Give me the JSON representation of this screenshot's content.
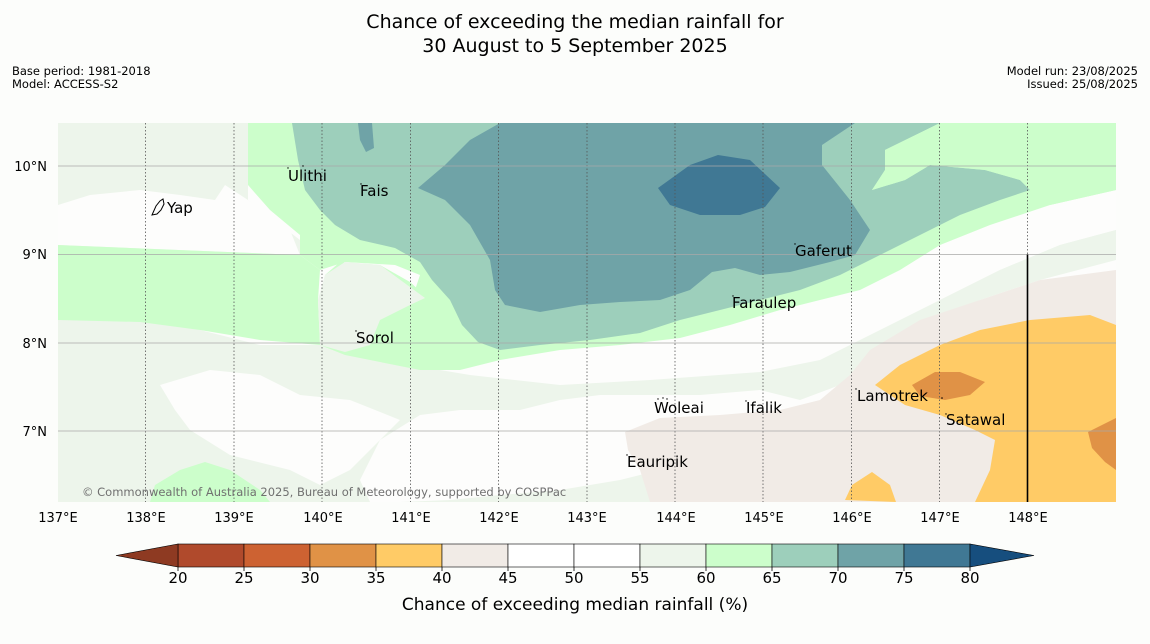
{
  "header": {
    "title_line1": "Chance of exceeding the median rainfall for",
    "title_line2": "30 August to 5 September 2025",
    "base_period": "Base period: 1981-2018",
    "model": "Model: ACCESS-S2",
    "model_run": "Model run: 23/08/2025",
    "issued": "Issued: 25/08/2025"
  },
  "map": {
    "lon_labels": [
      "137°E",
      "138°E",
      "139°E",
      "140°E",
      "141°E",
      "142°E",
      "143°E",
      "144°E",
      "145°E",
      "146°E",
      "147°E",
      "148°E"
    ],
    "lat_labels": [
      "10°N",
      "9°N",
      "8°N",
      "7°N"
    ],
    "places": [
      {
        "name": "Ulithi"
      },
      {
        "name": "Fais"
      },
      {
        "name": "Yap"
      },
      {
        "name": "Gaferut"
      },
      {
        "name": "Faraulep"
      },
      {
        "name": "Sorol"
      },
      {
        "name": "Woleai"
      },
      {
        "name": "Ifalik"
      },
      {
        "name": "Lamotrek"
      },
      {
        "name": "Satawal"
      },
      {
        "name": "Eauripik"
      }
    ],
    "copyright": "© Commonwealth of Australia 2025, Bureau of Meteorology, supported by COSPPac"
  },
  "colorbar": {
    "ticks": [
      "20",
      "25",
      "30",
      "35",
      "40",
      "45",
      "50",
      "55",
      "60",
      "65",
      "70",
      "75",
      "80"
    ],
    "colors": [
      "#b04a2c",
      "#cd6232",
      "#e09246",
      "#ffcb66",
      "#f1ebe6",
      "#ffffff",
      "#ffffff",
      "#edf5eb",
      "#ccfecb",
      "#9dcfbb",
      "#6fa3a7",
      "#407894"
    ],
    "under_color": "#8e3a22",
    "over_color": "#164e7e",
    "label": "Chance of exceeding median rainfall (%)"
  }
}
